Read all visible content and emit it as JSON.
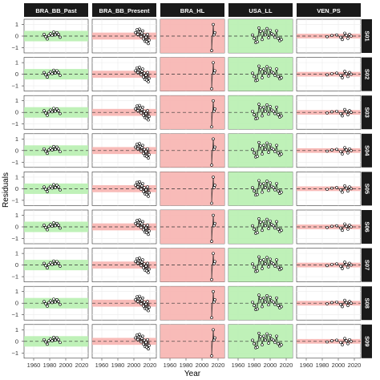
{
  "chart_data": {
    "type": "scatter",
    "xlabel": "Year",
    "ylabel": "Residuals",
    "xlim": [
      1948,
      2028
    ],
    "ylim": [
      -1.45,
      1.45
    ],
    "x_ticks": [
      1960,
      1980,
      2000,
      2020
    ],
    "y_ticks": [
      -1,
      0,
      1
    ],
    "grid": true,
    "facet_columns": [
      "BRA_BB_Past",
      "BRA_BB_Present",
      "BRA_HL",
      "USA_LL",
      "VEN_PS"
    ],
    "facet_rows": [
      "S01",
      "S02",
      "S03",
      "S04",
      "S05",
      "S06",
      "S07",
      "S08",
      "S09"
    ],
    "colors": {
      "green": "#b8f0b0",
      "red": "#f7b4b0",
      "strip": "#1a1a1a",
      "grid": "#ebebeb"
    },
    "column_band": [
      {
        "color": "green",
        "band": [
          -0.45,
          0.45
        ]
      },
      {
        "color": "red",
        "band": [
          -0.3,
          0.3
        ]
      },
      {
        "color": "red",
        "band": "full"
      },
      {
        "color": "green",
        "band": "full"
      },
      {
        "color": "red",
        "band": [
          -0.2,
          0.2
        ]
      }
    ],
    "series": [
      {
        "column": "BRA_BB_Past",
        "x": [
          1973,
          1975,
          1977,
          1979,
          1981,
          1983,
          1985,
          1987,
          1989,
          1991,
          1993
        ],
        "y": [
          0.15,
          -0.05,
          -0.25,
          0.05,
          0.2,
          0.05,
          0.35,
          0.1,
          0.3,
          0.15,
          -0.1
        ]
      },
      {
        "column": "BRA_BB_Present",
        "x": [
          2002,
          2004,
          2005,
          2007,
          2008,
          2009,
          2010,
          2011,
          2012,
          2013,
          2014,
          2015,
          2016,
          2017,
          2018,
          2019
        ],
        "y": [
          0.3,
          0.55,
          0.15,
          0.6,
          0.35,
          -0.05,
          0.25,
          0.45,
          -0.25,
          0.1,
          -0.45,
          -0.1,
          -0.5,
          0.15,
          -0.65,
          -0.35
        ]
      },
      {
        "column": "BRA_HL",
        "x": [
          2012,
          2014,
          2015,
          2016
        ],
        "y": [
          -1.25,
          1.0,
          0.1,
          0.3
        ]
      },
      {
        "column": "USA_LL",
        "x": [
          1978,
          1980,
          1982,
          1984,
          1986,
          1988,
          1990,
          1992,
          1994,
          1996,
          1998,
          2000,
          2002,
          2004,
          2006,
          2008,
          2010,
          2012,
          2014
        ],
        "y": [
          0.1,
          -0.2,
          -0.55,
          -0.5,
          0.7,
          0.4,
          -0.3,
          0.45,
          0.1,
          0.65,
          -0.15,
          0.5,
          0.2,
          0.1,
          -0.1,
          0.45,
          -0.2,
          -0.4,
          -0.3
        ]
      },
      {
        "column": "VEN_PS",
        "x": [
          1986,
          1992,
          1998,
          2003,
          2005,
          2008,
          2010,
          2012,
          2014,
          2016
        ],
        "y": [
          -0.05,
          0.05,
          0.1,
          -0.1,
          -0.3,
          0.25,
          0.05,
          -0.2,
          0.15,
          0.0
        ]
      }
    ]
  }
}
